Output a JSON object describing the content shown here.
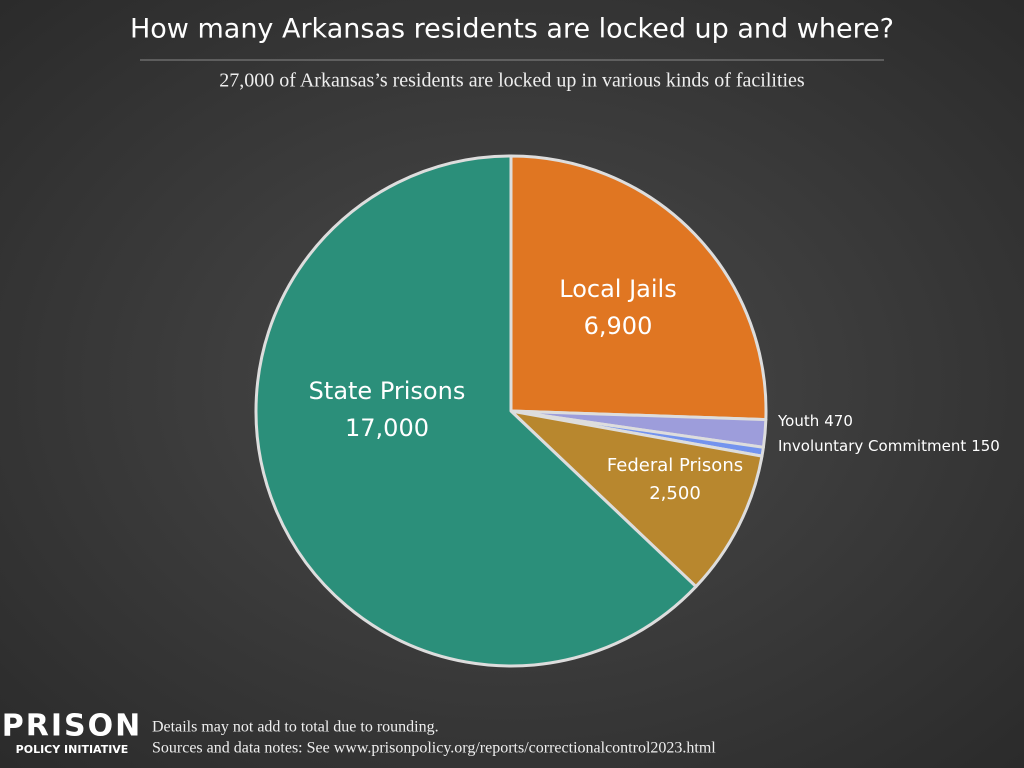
{
  "chart_data": {
    "type": "pie",
    "title": "How many Arkansas residents are locked up and where?",
    "subtitle": "27,000 of Arkansas’s residents are locked up in various kinds of facilities",
    "categories": [
      "Local Jails",
      "Youth",
      "Involuntary Commitment",
      "Federal Prisons",
      "State Prisons"
    ],
    "values": [
      6900,
      470,
      150,
      2500,
      17000
    ],
    "value_labels": [
      "6,900",
      "470",
      "150",
      "2,500",
      "17,000"
    ],
    "colors": [
      "#e07622",
      "#9d9ddb",
      "#7393ee",
      "#b8872e",
      "#2b8f7a"
    ],
    "notes": [
      "Details may not add to total due to rounding.",
      "Sources and data notes: See www.prisonpolicy.org/reports/correctionalcontrol2023.html"
    ],
    "logo": {
      "top": "PRISON",
      "bottom": "POLICY INITIATIVE"
    }
  }
}
